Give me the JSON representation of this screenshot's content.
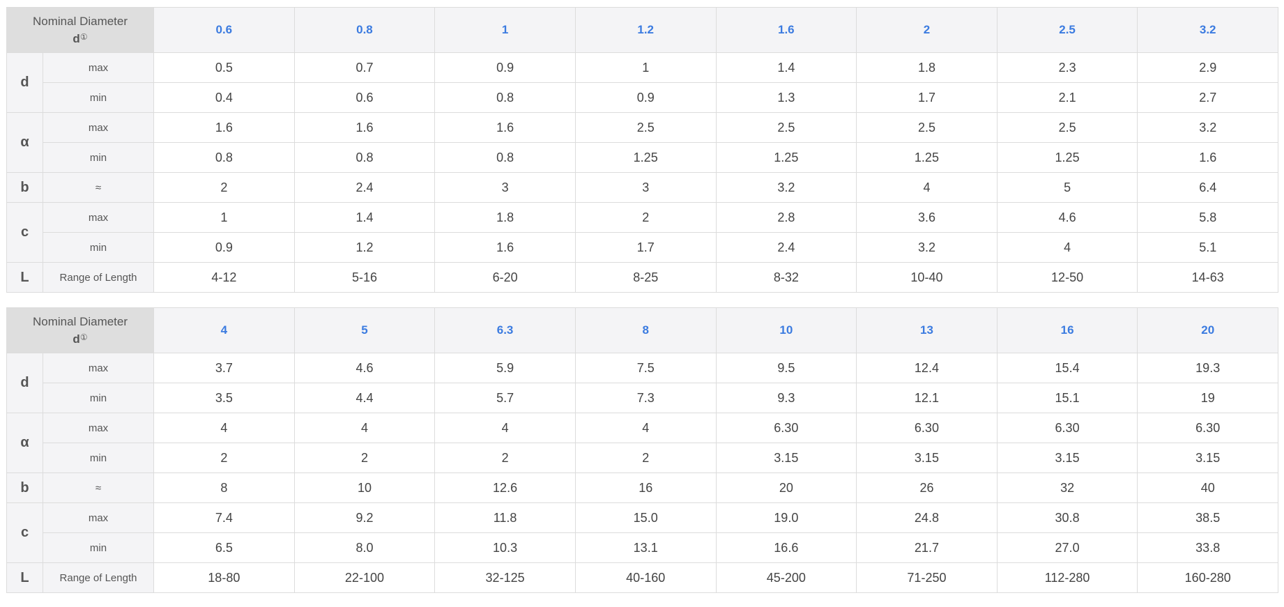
{
  "header_label_line1": "Nominal Diameter",
  "header_label_line2": "d",
  "header_note_mark": "①",
  "tables": [
    {
      "sizes": [
        "0.6",
        "0.8",
        "1",
        "1.2",
        "1.6",
        "2",
        "2.5",
        "3.2"
      ],
      "rows": [
        {
          "param": "d",
          "sub": "max",
          "values": [
            "0.5",
            "0.7",
            "0.9",
            "1",
            "1.4",
            "1.8",
            "2.3",
            "2.9"
          ]
        },
        {
          "param": "d",
          "sub": "min",
          "values": [
            "0.4",
            "0.6",
            "0.8",
            "0.9",
            "1.3",
            "1.7",
            "2.1",
            "2.7"
          ]
        },
        {
          "param": "α",
          "sub": "max",
          "values": [
            "1.6",
            "1.6",
            "1.6",
            "2.5",
            "2.5",
            "2.5",
            "2.5",
            "3.2"
          ]
        },
        {
          "param": "α",
          "sub": "min",
          "values": [
            "0.8",
            "0.8",
            "0.8",
            "1.25",
            "1.25",
            "1.25",
            "1.25",
            "1.6"
          ]
        },
        {
          "param": "b",
          "sub": "≈",
          "values": [
            "2",
            "2.4",
            "3",
            "3",
            "3.2",
            "4",
            "5",
            "6.4"
          ]
        },
        {
          "param": "c",
          "sub": "max",
          "values": [
            "1",
            "1.4",
            "1.8",
            "2",
            "2.8",
            "3.6",
            "4.6",
            "5.8"
          ]
        },
        {
          "param": "c",
          "sub": "min",
          "values": [
            "0.9",
            "1.2",
            "1.6",
            "1.7",
            "2.4",
            "3.2",
            "4",
            "5.1"
          ]
        },
        {
          "param": "L",
          "sub": "Range of Length",
          "values": [
            "4-12",
            "5-16",
            "6-20",
            "8-25",
            "8-32",
            "10-40",
            "12-50",
            "14-63"
          ]
        }
      ]
    },
    {
      "sizes": [
        "4",
        "5",
        "6.3",
        "8",
        "10",
        "13",
        "16",
        "20"
      ],
      "rows": [
        {
          "param": "d",
          "sub": "max",
          "values": [
            "3.7",
            "4.6",
            "5.9",
            "7.5",
            "9.5",
            "12.4",
            "15.4",
            "19.3"
          ]
        },
        {
          "param": "d",
          "sub": "min",
          "values": [
            "3.5",
            "4.4",
            "5.7",
            "7.3",
            "9.3",
            "12.1",
            "15.1",
            "19"
          ]
        },
        {
          "param": "α",
          "sub": "max",
          "values": [
            "4",
            "4",
            "4",
            "4",
            "6.30",
            "6.30",
            "6.30",
            "6.30"
          ]
        },
        {
          "param": "α",
          "sub": "min",
          "values": [
            "2",
            "2",
            "2",
            "2",
            "3.15",
            "3.15",
            "3.15",
            "3.15"
          ]
        },
        {
          "param": "b",
          "sub": "≈",
          "values": [
            "8",
            "10",
            "12.6",
            "16",
            "20",
            "26",
            "32",
            "40"
          ]
        },
        {
          "param": "c",
          "sub": "max",
          "values": [
            "7.4",
            "9.2",
            "11.8",
            "15.0",
            "19.0",
            "24.8",
            "30.8",
            "38.5"
          ]
        },
        {
          "param": "c",
          "sub": "min",
          "values": [
            "6.5",
            "8.0",
            "10.3",
            "13.1",
            "16.6",
            "21.7",
            "27.0",
            "33.8"
          ]
        },
        {
          "param": "L",
          "sub": "Range of Length",
          "values": [
            "18-80",
            "22-100",
            "32-125",
            "40-160",
            "45-200",
            "71-250",
            "112-280",
            "160-280"
          ]
        }
      ]
    }
  ]
}
